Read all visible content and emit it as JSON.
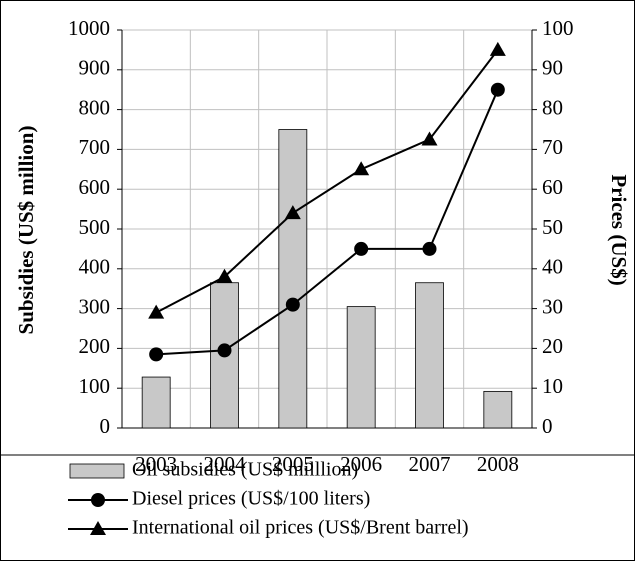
{
  "chart_data": {
    "type": "bar_line",
    "categories": [
      "2003",
      "2004",
      "2005",
      "2006",
      "2007",
      "2008"
    ],
    "series": [
      {
        "name": "Oil subsidies (US$ milllion)",
        "type": "bar",
        "color": "#c8c8c8",
        "values": [
          128,
          365,
          750,
          305,
          365,
          92
        ]
      },
      {
        "name": "Diesel prices (US$/100 liters)",
        "type": "line",
        "marker": "circle",
        "color": "#000000",
        "axis": "y2",
        "values": [
          18.5,
          19.5,
          31,
          45,
          45,
          85
        ]
      },
      {
        "name": "International oil prices (US$/Brent barrel)",
        "type": "line",
        "marker": "triangle",
        "color": "#000000",
        "axis": "y2",
        "values": [
          29,
          38,
          54,
          65,
          72.5,
          95
        ]
      }
    ],
    "ylabel": "Subsidies (US$ million)",
    "y2label": "Prices (US$)",
    "ylim": [
      0,
      1000
    ],
    "yticks": [
      0,
      100,
      200,
      300,
      400,
      500,
      600,
      700,
      800,
      900,
      1000
    ],
    "y2lim": [
      0,
      100
    ],
    "y2ticks": [
      0,
      10,
      20,
      30,
      40,
      50,
      60,
      70,
      80,
      90,
      100
    ],
    "grid": true,
    "legend": "bottom"
  }
}
